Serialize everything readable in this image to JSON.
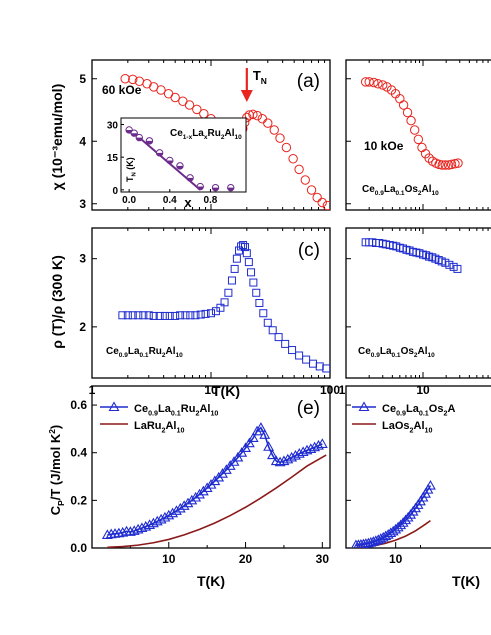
{
  "chart_data": [
    {
      "id": "a",
      "type": "scatter",
      "panel_label": "(a)",
      "annotation": "60 kOe",
      "arrow_label": "T",
      "arrow_label_sub": "N",
      "ylabel": "χ (10⁻³emu/mol)",
      "xscale": "log",
      "xlim": [
        1,
        100
      ],
      "ylim": [
        2.9,
        5.3
      ],
      "yticks": [
        3,
        4,
        5
      ],
      "color": "#e8251f",
      "arrow_at": 20,
      "series": [
        {
          "x": [
            1.9,
            2.2,
            2.5,
            2.9,
            3.3,
            3.8,
            4.4,
            5.0,
            5.8,
            6.6,
            7.6,
            8.7,
            10.0,
            11.5,
            13.2,
            14.5,
            15.8,
            16.9,
            17.8,
            18.5,
            19.2,
            20.0,
            21.0,
            22.5,
            24.5,
            27.0,
            30.0,
            34.0,
            38.0,
            43.0,
            49.0,
            55.0,
            62.0,
            70.0,
            78.0,
            86.0,
            95.0
          ],
          "y": [
            5.0,
            4.99,
            4.96,
            4.92,
            4.87,
            4.82,
            4.76,
            4.7,
            4.64,
            4.58,
            4.51,
            4.44,
            4.36,
            4.28,
            4.2,
            4.14,
            4.1,
            4.09,
            4.12,
            4.2,
            4.3,
            4.38,
            4.42,
            4.43,
            4.41,
            4.36,
            4.29,
            4.18,
            4.05,
            3.9,
            3.72,
            3.55,
            3.38,
            3.22,
            3.1,
            3.02,
            2.97
          ]
        }
      ],
      "inset": {
        "title": "Ce",
        "title_sub1": "1-x",
        "title_mid": "La",
        "title_sub2": "x",
        "title_end": "Ru",
        "title_sub3": "2",
        "title_end2": "Al",
        "title_sub4": "10",
        "xlabel": "x",
        "ylabel": "T",
        "ylabel_sub": "N",
        "ylabel_unit": "(K)",
        "xlim": [
          -0.08,
          1.15
        ],
        "ylim": [
          -1,
          33
        ],
        "xticks": [
          "0.0",
          "0.4",
          "0.8"
        ],
        "xtick_vals": [
          0,
          0.4,
          0.8
        ],
        "yticks": [
          "0",
          "15",
          "30"
        ],
        "ytick_vals": [
          0,
          15,
          30
        ],
        "points": {
          "x": [
            0.0,
            0.05,
            0.1,
            0.2,
            0.3,
            0.4,
            0.5,
            0.6,
            0.7,
            0.85,
            1.0
          ],
          "y": [
            27.5,
            26.0,
            24.0,
            22.5,
            17.0,
            13.5,
            11.0,
            5.5,
            1.5,
            1.0,
            1.0
          ]
        },
        "fit": {
          "x": [
            0.0,
            0.7
          ],
          "y": [
            28.0,
            0.0
          ]
        },
        "line_color": "#6b2c8c"
      }
    },
    {
      "id": "b",
      "type": "scatter",
      "annotation": "10 kOe",
      "caption": "Ce",
      "caption_sub1": "0.9",
      "caption_mid": "La",
      "caption_sub2": "0.1",
      "caption_end": "Os",
      "caption_sub3": "2",
      "caption_end2": "Al",
      "caption_sub4": "10",
      "xscale": "log",
      "xlim": [
        1,
        100
      ],
      "ylim": [
        2.9,
        5.3
      ],
      "color": "#e8251f",
      "series": [
        {
          "x": [
            1.8,
            2.0,
            2.3,
            2.6,
            3.0,
            3.4,
            3.9,
            4.4,
            5.0,
            5.6,
            6.3,
            7.0,
            7.8,
            8.7,
            9.7,
            10.8,
            12.0,
            13.3,
            14.7,
            16.2,
            17.8,
            19.5,
            21.5,
            23.5,
            26.0,
            28.5
          ],
          "y": [
            4.95,
            4.95,
            4.94,
            4.92,
            4.9,
            4.87,
            4.82,
            4.76,
            4.68,
            4.58,
            4.46,
            4.33,
            4.18,
            4.03,
            3.9,
            3.8,
            3.73,
            3.68,
            3.65,
            3.63,
            3.62,
            3.62,
            3.62,
            3.63,
            3.64,
            3.65
          ]
        }
      ]
    },
    {
      "id": "c",
      "type": "scatter",
      "panel_label": "(c)",
      "caption": "Ce",
      "caption_sub1": "0.9",
      "caption_mid": "La",
      "caption_sub2": "0.1",
      "caption_end": "Ru",
      "caption_sub3": "2",
      "caption_end2": "Al",
      "caption_sub4": "10",
      "ylabel": "ρ (T)/ρ (300 K)",
      "xlabel": "T(K)",
      "xscale": "log",
      "xlim": [
        1,
        100
      ],
      "ylim": [
        1.25,
        3.45
      ],
      "yticks": [
        1,
        2,
        3
      ],
      "xticks": [
        "1",
        "10",
        "100"
      ],
      "color": "#1f2ccf",
      "series": [
        {
          "x": [
            1.8,
            2.0,
            2.2,
            2.45,
            2.7,
            3.0,
            3.3,
            3.7,
            4.1,
            4.5,
            5.0,
            5.5,
            6.1,
            6.7,
            7.4,
            8.2,
            9.0,
            10.0,
            11.0,
            12.0,
            13.0,
            14.0,
            15.0,
            15.8,
            16.5,
            17.2,
            17.9,
            18.6,
            19.3,
            20.0,
            20.8,
            21.7,
            22.7,
            24.0,
            25.5,
            27.5,
            30.0,
            33.0,
            37.0,
            42.0,
            48.0,
            55.0,
            63.0,
            72.0,
            82.0,
            93.0
          ],
          "y": [
            2.17,
            2.17,
            2.17,
            2.17,
            2.17,
            2.17,
            2.16,
            2.16,
            2.16,
            2.16,
            2.16,
            2.17,
            2.17,
            2.17,
            2.17,
            2.18,
            2.19,
            2.2,
            2.23,
            2.28,
            2.36,
            2.5,
            2.68,
            2.85,
            3.0,
            3.12,
            3.18,
            3.2,
            3.17,
            3.08,
            2.95,
            2.8,
            2.65,
            2.5,
            2.35,
            2.2,
            2.06,
            1.95,
            1.85,
            1.75,
            1.66,
            1.58,
            1.52,
            1.46,
            1.42,
            1.39
          ]
        }
      ]
    },
    {
      "id": "d",
      "type": "scatter",
      "caption": "Ce",
      "caption_sub1": "0.9",
      "caption_mid": "La",
      "caption_sub2": "0.1",
      "caption_end": "Os",
      "caption_sub3": "2",
      "caption_end2": "Al",
      "caption_sub4": "10",
      "xscale": "log",
      "xlim": [
        1,
        100
      ],
      "ylim": [
        1.25,
        3.45
      ],
      "xticks": [
        "1",
        "10"
      ],
      "color": "#1f2ccf",
      "series": [
        {
          "x": [
            1.8,
            2.0,
            2.2,
            2.45,
            2.7,
            3.0,
            3.3,
            3.7,
            4.1,
            4.5,
            5.0,
            5.5,
            6.1,
            6.7,
            7.4,
            8.2,
            9.0,
            10.0,
            11.0,
            12.0,
            13.2,
            14.5,
            16.0,
            17.5,
            19.5,
            22.0,
            25.0,
            28.0
          ],
          "y": [
            3.24,
            3.24,
            3.24,
            3.23,
            3.23,
            3.22,
            3.21,
            3.2,
            3.19,
            3.18,
            3.16,
            3.15,
            3.13,
            3.12,
            3.1,
            3.09,
            3.08,
            3.06,
            3.05,
            3.03,
            3.02,
            3.0,
            2.98,
            2.96,
            2.94,
            2.91,
            2.88,
            2.85
          ]
        }
      ]
    },
    {
      "id": "e",
      "type": "line",
      "panel_label": "(e)",
      "ylabel": "C",
      "ylabel_sub": "P",
      "ylabel_end": "/T (J/mol K",
      "ylabel_sup": "2",
      "ylabel_close": ")",
      "xlabel": "T(K)",
      "xlim": [
        0,
        31
      ],
      "ylim": [
        0,
        0.68
      ],
      "yticks": [
        "0.0",
        "0.2",
        "0.4",
        "0.6"
      ],
      "ytick_vals": [
        0,
        0.2,
        0.4,
        0.6
      ],
      "xticks": [
        "10",
        "20",
        "30"
      ],
      "xtick_vals": [
        10,
        20,
        30
      ],
      "legend": [
        {
          "label": "Ce",
          "sub1": "0.9",
          "mid": "La",
          "sub2": "0.1",
          "end": "Ru",
          "sub3": "2",
          "end2": "Al",
          "sub4": "10",
          "marker": "triangle",
          "color": "#1f2ccf"
        },
        {
          "label": "LaRu",
          "sub1": "2",
          "mid": "Al",
          "sub2": "10",
          "end": "",
          "sub3": "",
          "end2": "",
          "sub4": "",
          "marker": "line",
          "color": "#8b1a1a"
        }
      ],
      "series": [
        {
          "name": "Ce0.9La0.1Ru2Al10",
          "color": "#1f2ccf",
          "x": [
            2.0,
            2.5,
            3.0,
            3.5,
            4.0,
            4.5,
            5.0,
            5.5,
            6.0,
            6.5,
            7.0,
            7.5,
            8.0,
            8.5,
            9.0,
            9.5,
            10.0,
            10.5,
            11.0,
            11.5,
            12.0,
            12.5,
            13.0,
            13.5,
            14.0,
            14.5,
            15.0,
            15.5,
            16.0,
            16.5,
            17.0,
            17.5,
            18.0,
            18.5,
            19.0,
            19.5,
            20.0,
            20.5,
            21.0,
            21.5,
            22.0,
            22.5,
            23.0,
            23.5,
            24.0,
            24.5,
            25.0,
            25.5,
            26.0,
            26.5,
            27.0,
            27.5,
            28.0,
            28.5,
            29.0,
            29.5,
            30.0
          ],
          "y": [
            0.055,
            0.058,
            0.06,
            0.062,
            0.065,
            0.07,
            0.068,
            0.072,
            0.078,
            0.084,
            0.09,
            0.097,
            0.104,
            0.112,
            0.12,
            0.128,
            0.137,
            0.146,
            0.156,
            0.166,
            0.177,
            0.188,
            0.2,
            0.212,
            0.225,
            0.238,
            0.252,
            0.266,
            0.281,
            0.296,
            0.312,
            0.328,
            0.345,
            0.362,
            0.38,
            0.4,
            0.42,
            0.44,
            0.462,
            0.49,
            0.505,
            0.475,
            0.425,
            0.39,
            0.365,
            0.36,
            0.365,
            0.372,
            0.38,
            0.388,
            0.396,
            0.403,
            0.41,
            0.416,
            0.423,
            0.43,
            0.437
          ]
        },
        {
          "name": "LaRu2Al10",
          "color": "#8b1a1a",
          "x": [
            2,
            4,
            6,
            8,
            10,
            12,
            14,
            16,
            18,
            20,
            22,
            24,
            26,
            28,
            30.5
          ],
          "y": [
            0.003,
            0.006,
            0.012,
            0.022,
            0.036,
            0.055,
            0.078,
            0.105,
            0.136,
            0.171,
            0.21,
            0.252,
            0.297,
            0.344,
            0.39
          ]
        }
      ]
    },
    {
      "id": "f",
      "type": "line",
      "xlabel": "T(K)",
      "xlim": [
        0,
        31
      ],
      "ylim": [
        0,
        0.68
      ],
      "xticks": [
        "10"
      ],
      "xtick_vals": [
        10
      ],
      "legend": [
        {
          "label": "Ce",
          "sub1": "0.9",
          "mid": "La",
          "sub2": "0.1",
          "end": "Os",
          "sub3": "2",
          "end2": "A",
          "sub4": "",
          "marker": "triangle",
          "color": "#1f2ccf"
        },
        {
          "label": "LaOs",
          "sub1": "2",
          "mid": "Al",
          "sub2": "10",
          "end": "",
          "sub3": "",
          "end2": "",
          "sub4": "",
          "marker": "line",
          "color": "#8b1a1a"
        }
      ],
      "series": [
        {
          "name": "Ce0.9La0.1Os2Al10",
          "color": "#1f2ccf",
          "x": [
            2.0,
            2.5,
            3.0,
            3.5,
            4.0,
            4.5,
            5.0,
            5.5,
            6.0,
            6.5,
            7.0,
            7.5,
            8.0,
            8.5,
            9.0,
            9.5,
            10.0,
            10.5,
            11.0,
            11.5,
            12.0,
            12.5,
            13.0,
            13.5,
            14.0,
            14.5,
            15.0,
            15.5,
            16.0,
            16.5,
            17.0
          ],
          "y": [
            0.012,
            0.013,
            0.014,
            0.016,
            0.018,
            0.02,
            0.023,
            0.026,
            0.03,
            0.034,
            0.039,
            0.044,
            0.05,
            0.056,
            0.063,
            0.07,
            0.078,
            0.087,
            0.096,
            0.106,
            0.117,
            0.128,
            0.14,
            0.153,
            0.167,
            0.181,
            0.196,
            0.212,
            0.228,
            0.245,
            0.262
          ]
        },
        {
          "name": "LaOs2Al10",
          "color": "#8b1a1a",
          "x": [
            2,
            4,
            6,
            8,
            10,
            12,
            14,
            16,
            17
          ],
          "y": [
            0.002,
            0.005,
            0.011,
            0.02,
            0.033,
            0.05,
            0.072,
            0.1,
            0.115
          ]
        }
      ]
    }
  ]
}
